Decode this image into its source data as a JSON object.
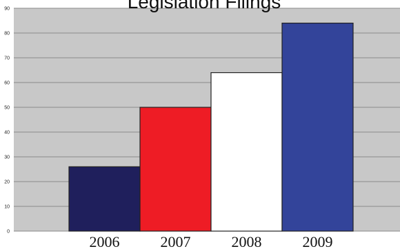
{
  "chart_data": {
    "type": "bar",
    "title": "Legislation Filings",
    "categories": [
      "2006",
      "2007",
      "2008",
      "2009"
    ],
    "values": [
      26,
      50,
      64,
      84
    ],
    "colors": [
      "#1f1f5c",
      "#ee1c25",
      "#ffffff",
      "#33449a"
    ],
    "xlabel": "",
    "ylabel": "",
    "ylim": [
      0,
      90
    ],
    "yticks": [
      0,
      10,
      20,
      30,
      40,
      50,
      60,
      70,
      80,
      90
    ],
    "grid": true,
    "plot_background": "#c8c8c8",
    "legend": "none"
  }
}
